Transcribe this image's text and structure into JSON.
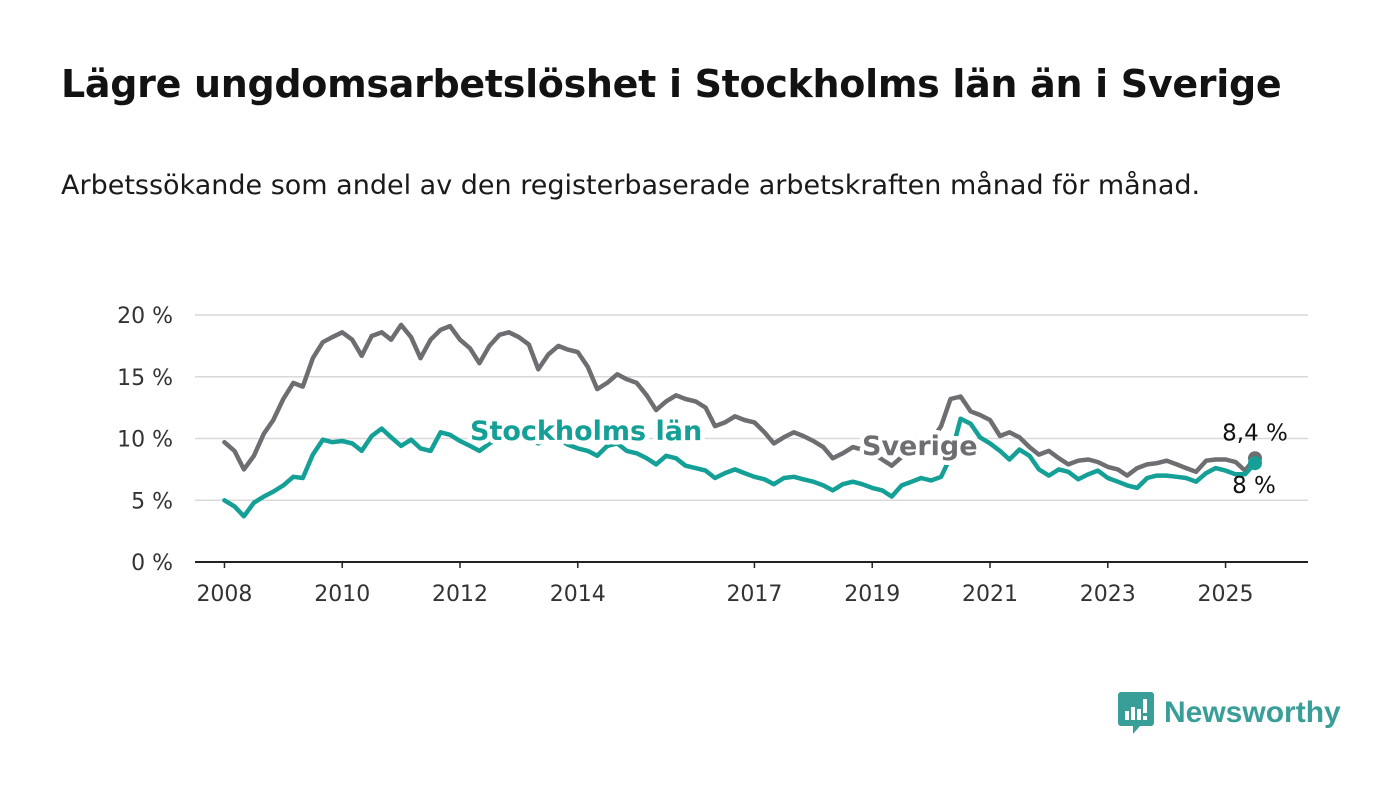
{
  "title": "Lägre ungdomsarbetslöshet i Stockholms län än i Sverige",
  "subtitle": "Arbetssökande som andel av den registerbaserade arbetskraften månad för månad.",
  "brand": {
    "name": "Newsworthy",
    "color": "#3a9e98",
    "icon": "newsworthy-logo-icon"
  },
  "chart_data": {
    "type": "line",
    "title": "Lägre ungdomsarbetslöshet i Stockholms län än i Sverige",
    "subtitle": "Arbetssökande som andel av den registerbaserade arbetskraften månad för månad.",
    "xlabel": "",
    "ylabel": "",
    "ylim": [
      0,
      20
    ],
    "xlim": [
      2007.5,
      2026.4
    ],
    "y_ticks": [
      0,
      5,
      10,
      15,
      20
    ],
    "y_tick_labels": [
      "0 %",
      "5 %",
      "10 %",
      "15 %",
      "20 %"
    ],
    "x_ticks": [
      2008,
      2010,
      2012,
      2014,
      2017,
      2019,
      2021,
      2023,
      2025
    ],
    "x_tick_labels": [
      "2008",
      "2010",
      "2012",
      "2014",
      "2017",
      "2019",
      "2021",
      "2023",
      "2025"
    ],
    "grid": "horizontal",
    "legend": "none (direct labels on lines)",
    "series": [
      {
        "name": "Sverige",
        "color": "#6e6d72",
        "end_label": "8,4 %",
        "x": [
          2008.0,
          2008.17,
          2008.33,
          2008.5,
          2008.67,
          2008.83,
          2009.0,
          2009.17,
          2009.33,
          2009.5,
          2009.67,
          2009.83,
          2010.0,
          2010.17,
          2010.33,
          2010.5,
          2010.67,
          2010.83,
          2011.0,
          2011.17,
          2011.33,
          2011.5,
          2011.67,
          2011.83,
          2012.0,
          2012.17,
          2012.33,
          2012.5,
          2012.67,
          2012.83,
          2013.0,
          2013.17,
          2013.33,
          2013.5,
          2013.67,
          2013.83,
          2014.0,
          2014.17,
          2014.33,
          2014.5,
          2014.67,
          2014.83,
          2015.0,
          2015.17,
          2015.33,
          2015.5,
          2015.67,
          2015.83,
          2016.0,
          2016.17,
          2016.33,
          2016.5,
          2016.67,
          2016.83,
          2017.0,
          2017.17,
          2017.33,
          2017.5,
          2017.67,
          2017.83,
          2018.0,
          2018.17,
          2018.33,
          2018.5,
          2018.67,
          2018.83,
          2019.0,
          2019.17,
          2019.33,
          2019.5,
          2019.67,
          2019.83,
          2020.0,
          2020.17,
          2020.33,
          2020.5,
          2020.67,
          2020.83,
          2021.0,
          2021.17,
          2021.33,
          2021.5,
          2021.67,
          2021.83,
          2022.0,
          2022.17,
          2022.33,
          2022.5,
          2022.67,
          2022.83,
          2023.0,
          2023.17,
          2023.33,
          2023.5,
          2023.67,
          2023.83,
          2024.0,
          2024.17,
          2024.33,
          2024.5,
          2024.67,
          2024.83,
          2025.0,
          2025.17,
          2025.33,
          2025.5
        ],
        "values": [
          9.7,
          9.0,
          7.5,
          8.6,
          10.4,
          11.5,
          13.2,
          14.5,
          14.2,
          16.5,
          17.8,
          18.2,
          18.6,
          18.0,
          16.7,
          18.3,
          18.6,
          18.0,
          19.2,
          18.2,
          16.5,
          18.0,
          18.8,
          19.1,
          18.0,
          17.3,
          16.1,
          17.5,
          18.4,
          18.6,
          18.2,
          17.6,
          15.6,
          16.8,
          17.5,
          17.2,
          17.0,
          15.8,
          14.0,
          14.5,
          15.2,
          14.8,
          14.5,
          13.5,
          12.3,
          13.0,
          13.5,
          13.2,
          13.0,
          12.5,
          11.0,
          11.3,
          11.8,
          11.5,
          11.3,
          10.5,
          9.6,
          10.1,
          10.5,
          10.2,
          9.8,
          9.3,
          8.4,
          8.8,
          9.3,
          9.1,
          8.8,
          8.3,
          7.8,
          8.5,
          9.2,
          9.6,
          9.8,
          11.0,
          13.2,
          13.4,
          12.2,
          11.9,
          11.5,
          10.2,
          10.5,
          10.1,
          9.3,
          8.7,
          9.0,
          8.4,
          7.9,
          8.2,
          8.3,
          8.1,
          7.7,
          7.5,
          7.0,
          7.6,
          7.9,
          8.0,
          8.2,
          7.9,
          7.6,
          7.3,
          8.2,
          8.3,
          8.3,
          8.1,
          7.4,
          8.4
        ]
      },
      {
        "name": "Stockholms län",
        "color": "#14a097",
        "end_label": "8 %",
        "x": [
          2008.0,
          2008.17,
          2008.33,
          2008.5,
          2008.67,
          2008.83,
          2009.0,
          2009.17,
          2009.33,
          2009.5,
          2009.67,
          2009.83,
          2010.0,
          2010.17,
          2010.33,
          2010.5,
          2010.67,
          2010.83,
          2011.0,
          2011.17,
          2011.33,
          2011.5,
          2011.67,
          2011.83,
          2012.0,
          2012.17,
          2012.33,
          2012.5,
          2012.67,
          2012.83,
          2013.0,
          2013.17,
          2013.33,
          2013.5,
          2013.67,
          2013.83,
          2014.0,
          2014.17,
          2014.33,
          2014.5,
          2014.67,
          2014.83,
          2015.0,
          2015.17,
          2015.33,
          2015.5,
          2015.67,
          2015.83,
          2016.0,
          2016.17,
          2016.33,
          2016.5,
          2016.67,
          2016.83,
          2017.0,
          2017.17,
          2017.33,
          2017.5,
          2017.67,
          2017.83,
          2018.0,
          2018.17,
          2018.33,
          2018.5,
          2018.67,
          2018.83,
          2019.0,
          2019.17,
          2019.33,
          2019.5,
          2019.67,
          2019.83,
          2020.0,
          2020.17,
          2020.33,
          2020.5,
          2020.67,
          2020.83,
          2021.0,
          2021.17,
          2021.33,
          2021.5,
          2021.67,
          2021.83,
          2022.0,
          2022.17,
          2022.33,
          2022.5,
          2022.67,
          2022.83,
          2023.0,
          2023.17,
          2023.33,
          2023.5,
          2023.67,
          2023.83,
          2024.0,
          2024.17,
          2024.33,
          2024.5,
          2024.67,
          2024.83,
          2025.0,
          2025.17,
          2025.33,
          2025.5
        ],
        "values": [
          5.0,
          4.5,
          3.7,
          4.8,
          5.3,
          5.7,
          6.2,
          6.9,
          6.8,
          8.7,
          9.9,
          9.7,
          9.8,
          9.6,
          9.0,
          10.2,
          10.8,
          10.1,
          9.4,
          9.9,
          9.2,
          9.0,
          10.5,
          10.3,
          9.8,
          9.4,
          9.0,
          9.6,
          10.0,
          10.3,
          10.2,
          10.0,
          9.6,
          9.9,
          10.0,
          9.5,
          9.2,
          9.0,
          8.6,
          9.4,
          9.6,
          9.0,
          8.8,
          8.4,
          7.9,
          8.6,
          8.4,
          7.8,
          7.6,
          7.4,
          6.8,
          7.2,
          7.5,
          7.2,
          6.9,
          6.7,
          6.3,
          6.8,
          6.9,
          6.7,
          6.5,
          6.2,
          5.8,
          6.3,
          6.5,
          6.3,
          6.0,
          5.8,
          5.3,
          6.2,
          6.5,
          6.8,
          6.6,
          6.9,
          8.5,
          11.6,
          11.2,
          10.1,
          9.6,
          9.0,
          8.3,
          9.1,
          8.6,
          7.5,
          7.0,
          7.5,
          7.3,
          6.7,
          7.1,
          7.4,
          6.8,
          6.5,
          6.2,
          6.0,
          6.8,
          7.0,
          7.0,
          6.9,
          6.8,
          6.5,
          7.2,
          7.6,
          7.4,
          7.1,
          7.1,
          8.0
        ]
      }
    ]
  }
}
